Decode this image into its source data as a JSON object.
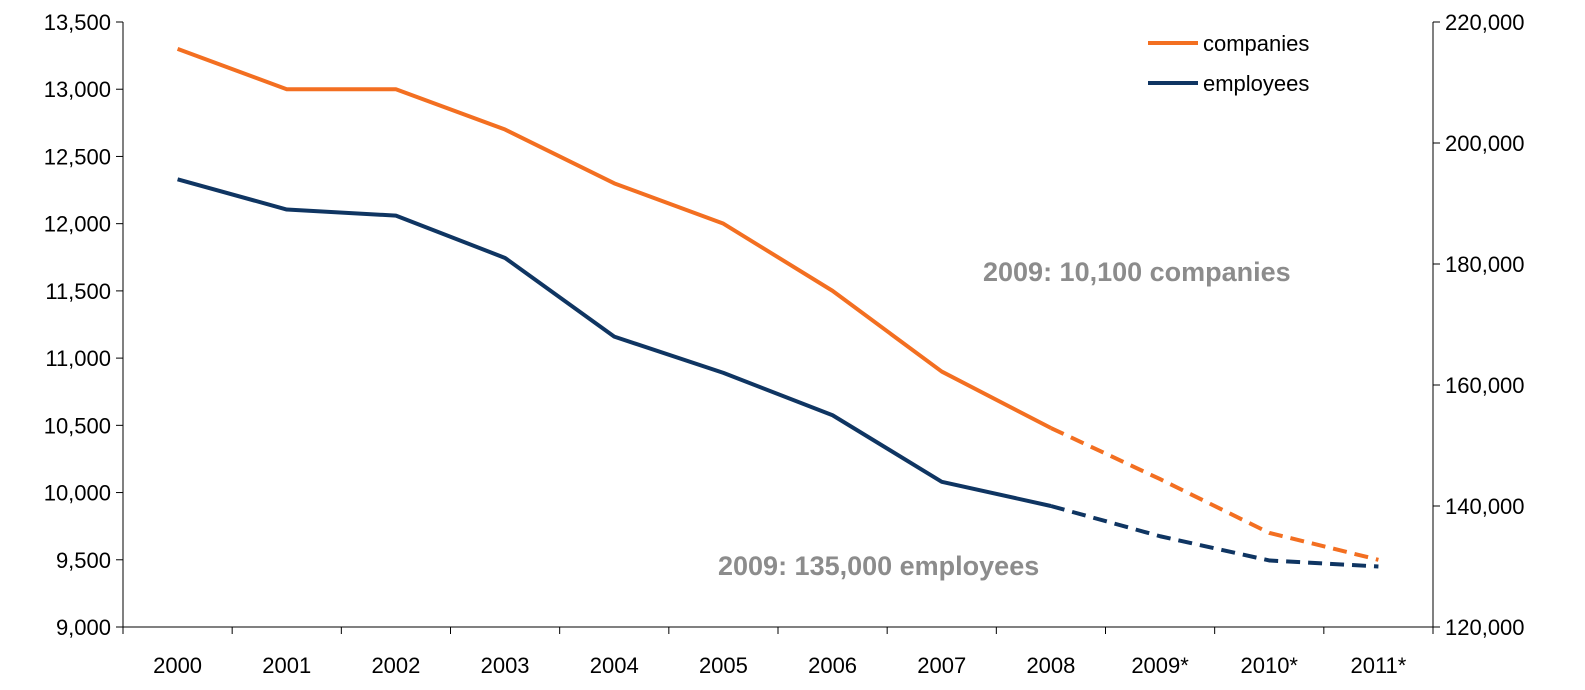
{
  "chart_data": {
    "type": "line",
    "categories": [
      "2000",
      "2001",
      "2002",
      "2003",
      "2004",
      "2005",
      "2006",
      "2007",
      "2008",
      "2009*",
      "2010*",
      "2011*"
    ],
    "series": [
      {
        "name": "companies",
        "axis": "left",
        "color": "#f36f21",
        "values": [
          13300,
          13000,
          13000,
          12700,
          12300,
          12000,
          11500,
          10900,
          10480,
          10100,
          9700,
          9500
        ],
        "dashed_from_index": 8
      },
      {
        "name": "employees",
        "axis": "right",
        "color": "#0f3562",
        "values": [
          194000,
          189000,
          188000,
          181000,
          168000,
          162000,
          155000,
          144000,
          140000,
          135000,
          131000,
          130000
        ],
        "dashed_from_index": 8
      }
    ],
    "y_left": {
      "min": 9000,
      "max": 13500,
      "ticks": [
        9000,
        9500,
        10000,
        10500,
        11000,
        11500,
        12000,
        12500,
        13000,
        13500
      ],
      "tick_labels": [
        "9,000",
        "9,500",
        "10,000",
        "10,500",
        "11,000",
        "11,500",
        "12,000",
        "12,500",
        "13,000",
        "13,500"
      ]
    },
    "y_right": {
      "min": 120000,
      "max": 220000,
      "ticks": [
        120000,
        140000,
        160000,
        180000,
        200000,
        220000
      ],
      "tick_labels": [
        "120,000",
        "140,000",
        "160,000",
        "180,000",
        "200,000",
        "220,000"
      ]
    },
    "legend": {
      "position": "top-right",
      "entries": [
        "companies",
        "employees"
      ]
    },
    "annotations": [
      "2009: 10,100 companies",
      "2009: 135,000 employees"
    ],
    "grid": false
  }
}
